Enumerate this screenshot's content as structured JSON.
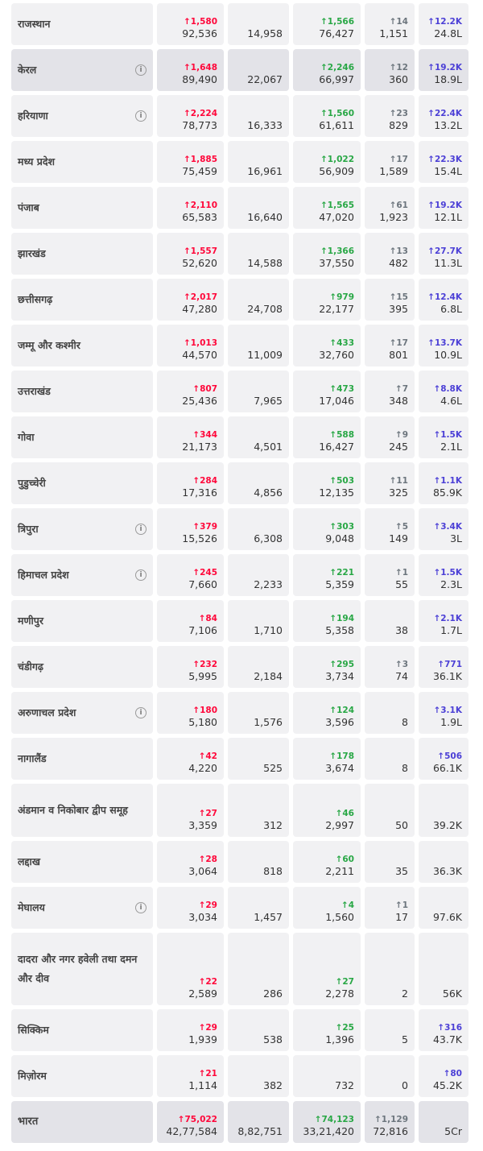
{
  "colors": {
    "confirmed_delta": "#ff073a",
    "recovered_delta": "#28a745",
    "deceased_delta": "#6c757d",
    "tested_delta": "#4b3fd6"
  },
  "rows": [
    {
      "name": "राजस्थान",
      "info": false,
      "conf_d": "↑1,580",
      "conf": "92,536",
      "active": "14,958",
      "rec_d": "↑1,566",
      "rec": "76,427",
      "dec_d": "↑14",
      "dec": "1,151",
      "test_d": "↑12.2K",
      "test": "24.8L"
    },
    {
      "name": "केरल",
      "info": true,
      "conf_d": "↑1,648",
      "conf": "89,490",
      "active": "22,067",
      "rec_d": "↑2,246",
      "rec": "66,997",
      "dec_d": "↑12",
      "dec": "360",
      "test_d": "↑19.2K",
      "test": "18.9L"
    },
    {
      "name": "हरियाणा",
      "info": true,
      "conf_d": "↑2,224",
      "conf": "78,773",
      "active": "16,333",
      "rec_d": "↑1,560",
      "rec": "61,611",
      "dec_d": "↑23",
      "dec": "829",
      "test_d": "↑22.4K",
      "test": "13.2L"
    },
    {
      "name": "मध्य प्रदेश",
      "info": false,
      "conf_d": "↑1,885",
      "conf": "75,459",
      "active": "16,961",
      "rec_d": "↑1,022",
      "rec": "56,909",
      "dec_d": "↑17",
      "dec": "1,589",
      "test_d": "↑22.3K",
      "test": "15.4L"
    },
    {
      "name": "पंजाब",
      "info": false,
      "conf_d": "↑2,110",
      "conf": "65,583",
      "active": "16,640",
      "rec_d": "↑1,565",
      "rec": "47,020",
      "dec_d": "↑61",
      "dec": "1,923",
      "test_d": "↑19.2K",
      "test": "12.1L"
    },
    {
      "name": "झारखंड",
      "info": false,
      "conf_d": "↑1,557",
      "conf": "52,620",
      "active": "14,588",
      "rec_d": "↑1,366",
      "rec": "37,550",
      "dec_d": "↑13",
      "dec": "482",
      "test_d": "↑27.7K",
      "test": "11.3L"
    },
    {
      "name": "छत्तीसगढ़",
      "info": false,
      "conf_d": "↑2,017",
      "conf": "47,280",
      "active": "24,708",
      "rec_d": "↑979",
      "rec": "22,177",
      "dec_d": "↑15",
      "dec": "395",
      "test_d": "↑12.4K",
      "test": "6.8L"
    },
    {
      "name": "जम्मू और कश्मीर",
      "info": false,
      "conf_d": "↑1,013",
      "conf": "44,570",
      "active": "11,009",
      "rec_d": "↑433",
      "rec": "32,760",
      "dec_d": "↑17",
      "dec": "801",
      "test_d": "↑13.7K",
      "test": "10.9L"
    },
    {
      "name": "उत्तराखंड",
      "info": false,
      "conf_d": "↑807",
      "conf": "25,436",
      "active": "7,965",
      "rec_d": "↑473",
      "rec": "17,046",
      "dec_d": "↑7",
      "dec": "348",
      "test_d": "↑8.8K",
      "test": "4.6L"
    },
    {
      "name": "गोवा",
      "info": false,
      "conf_d": "↑344",
      "conf": "21,173",
      "active": "4,501",
      "rec_d": "↑588",
      "rec": "16,427",
      "dec_d": "↑9",
      "dec": "245",
      "test_d": "↑1.5K",
      "test": "2.1L"
    },
    {
      "name": "पुडुच्चेरी",
      "info": false,
      "conf_d": "↑284",
      "conf": "17,316",
      "active": "4,856",
      "rec_d": "↑503",
      "rec": "12,135",
      "dec_d": "↑11",
      "dec": "325",
      "test_d": "↑1.1K",
      "test": "85.9K"
    },
    {
      "name": "त्रिपुरा",
      "info": true,
      "conf_d": "↑379",
      "conf": "15,526",
      "active": "6,308",
      "rec_d": "↑303",
      "rec": "9,048",
      "dec_d": "↑5",
      "dec": "149",
      "test_d": "↑3.4K",
      "test": "3L"
    },
    {
      "name": "हिमाचल प्रदेश",
      "info": true,
      "conf_d": "↑245",
      "conf": "7,660",
      "active": "2,233",
      "rec_d": "↑221",
      "rec": "5,359",
      "dec_d": "↑1",
      "dec": "55",
      "test_d": "↑1.5K",
      "test": "2.3L"
    },
    {
      "name": "मणीपुर",
      "info": false,
      "conf_d": "↑84",
      "conf": "7,106",
      "active": "1,710",
      "rec_d": "↑194",
      "rec": "5,358",
      "dec_d": "",
      "dec": "38",
      "test_d": "↑2.1K",
      "test": "1.7L"
    },
    {
      "name": "चंडीगढ़",
      "info": false,
      "conf_d": "↑232",
      "conf": "5,995",
      "active": "2,184",
      "rec_d": "↑295",
      "rec": "3,734",
      "dec_d": "↑3",
      "dec": "74",
      "test_d": "↑771",
      "test": "36.1K"
    },
    {
      "name": "अरुणाचल प्रदेश",
      "info": true,
      "conf_d": "↑180",
      "conf": "5,180",
      "active": "1,576",
      "rec_d": "↑124",
      "rec": "3,596",
      "dec_d": "",
      "dec": "8",
      "test_d": "↑3.1K",
      "test": "1.9L"
    },
    {
      "name": "नागालैंड",
      "info": false,
      "conf_d": "↑42",
      "conf": "4,220",
      "active": "525",
      "rec_d": "↑178",
      "rec": "3,674",
      "dec_d": "",
      "dec": "8",
      "test_d": "↑506",
      "test": "66.1K"
    },
    {
      "name": "अंडमान व निकोबार द्वीप समूह",
      "info": false,
      "conf_d": "↑27",
      "conf": "3,359",
      "active": "312",
      "rec_d": "↑46",
      "rec": "2,997",
      "dec_d": "",
      "dec": "50",
      "test_d": "",
      "test": "39.2K"
    },
    {
      "name": "लद्दाख",
      "info": false,
      "conf_d": "↑28",
      "conf": "3,064",
      "active": "818",
      "rec_d": "↑60",
      "rec": "2,211",
      "dec_d": "",
      "dec": "35",
      "test_d": "",
      "test": "36.3K"
    },
    {
      "name": "मेघालय",
      "info": true,
      "conf_d": "↑29",
      "conf": "3,034",
      "active": "1,457",
      "rec_d": "↑4",
      "rec": "1,560",
      "dec_d": "↑1",
      "dec": "17",
      "test_d": "",
      "test": "97.6K"
    },
    {
      "name": "दादरा और नगर हवेली तथा दमन और दीव",
      "info": false,
      "conf_d": "↑22",
      "conf": "2,589",
      "active": "286",
      "rec_d": "↑27",
      "rec": "2,278",
      "dec_d": "",
      "dec": "2",
      "test_d": "",
      "test": "56K"
    },
    {
      "name": "सिक्किम",
      "info": false,
      "conf_d": "↑29",
      "conf": "1,939",
      "active": "538",
      "rec_d": "↑25",
      "rec": "1,396",
      "dec_d": "",
      "dec": "5",
      "test_d": "↑316",
      "test": "43.7K"
    },
    {
      "name": "मिज़ोरम",
      "info": false,
      "conf_d": "↑21",
      "conf": "1,114",
      "active": "382",
      "rec_d": "",
      "rec": "732",
      "dec_d": "",
      "dec": "0",
      "test_d": "↑80",
      "test": "45.2K"
    },
    {
      "name": "भारत",
      "info": false,
      "total": true,
      "conf_d": "↑75,022",
      "conf": "42,77,584",
      "active": "8,82,751",
      "rec_d": "↑74,123",
      "rec": "33,21,420",
      "dec_d": "↑1,129",
      "dec": "72,816",
      "test_d": "",
      "test": "5Cr"
    }
  ]
}
